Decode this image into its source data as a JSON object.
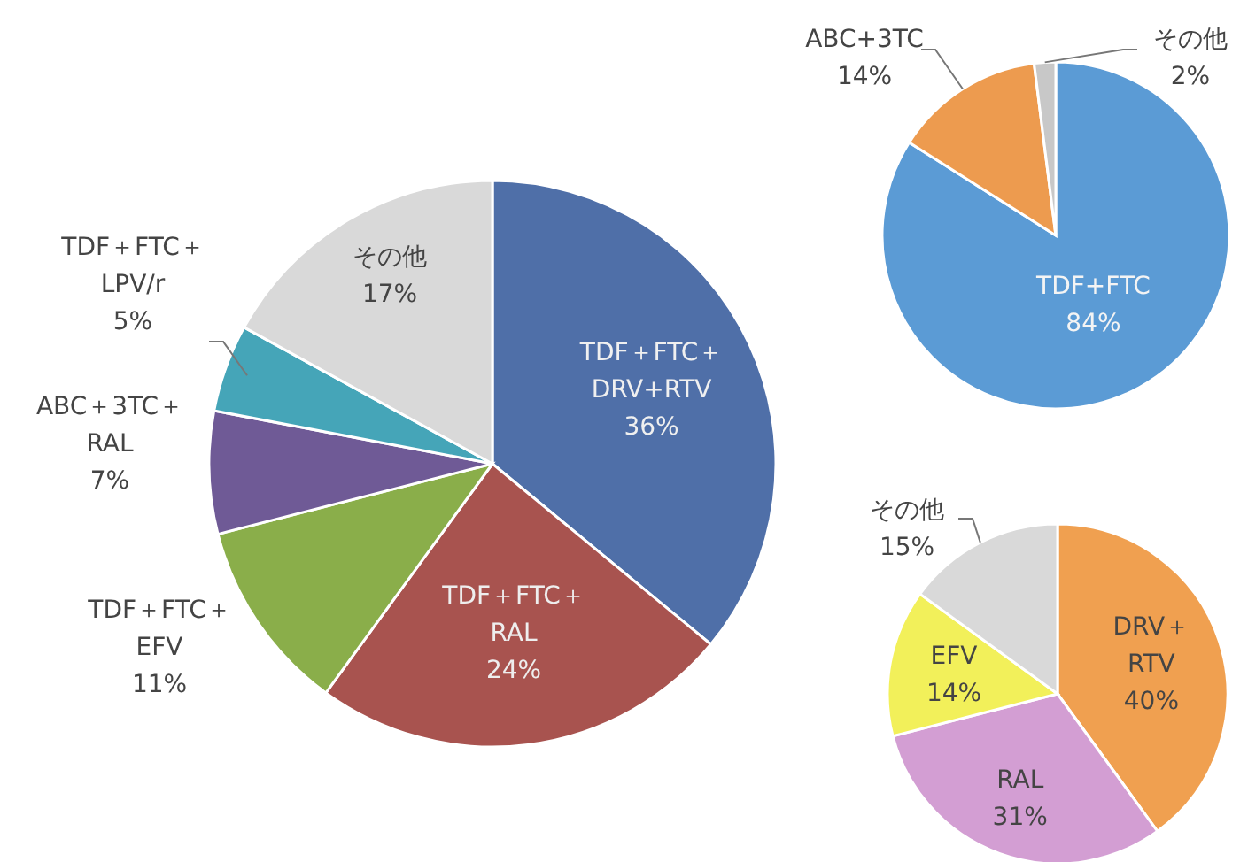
{
  "chart_data": [
    {
      "type": "pie",
      "categories": [
        "TDF＋FTC＋\nDRV+RTV",
        "TDF＋FTC＋\nRAL",
        "TDF＋FTC＋\nEFV",
        "ABC＋3TC＋\nRAL",
        "TDF＋FTC＋\nLPV/r",
        "その他"
      ],
      "values": [
        36,
        24,
        11,
        7,
        5,
        17
      ],
      "value_labels": [
        "36%",
        "24%",
        "11%",
        "7%",
        "5%",
        "17%"
      ],
      "colors": [
        "#4f6fa8",
        "#a8534f",
        "#8aae4a",
        "#6f5a96",
        "#45a5b8",
        "#d9d9d9"
      ]
    },
    {
      "type": "pie",
      "categories": [
        "TDF+FTC",
        "ABC+3TC",
        "その他"
      ],
      "values": [
        84,
        14,
        2
      ],
      "value_labels": [
        "84%",
        "14%",
        "2%"
      ],
      "colors": [
        "#5b9bd5",
        "#ed9b4f",
        "#c8c8c8"
      ]
    },
    {
      "type": "pie",
      "categories": [
        "DRV＋\nRTV",
        "RAL",
        "EFV",
        "その他"
      ],
      "values": [
        40,
        31,
        14,
        15
      ],
      "value_labels": [
        "40%",
        "31%",
        "14%",
        "15%"
      ],
      "colors": [
        "#f0a050",
        "#d39ed3",
        "#f2f05a",
        "#d9d9d9"
      ]
    }
  ]
}
